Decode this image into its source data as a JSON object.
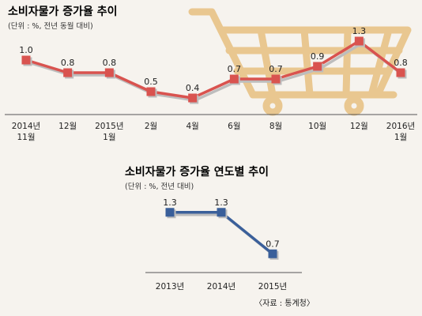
{
  "colors": {
    "background": "#f6f3ee",
    "cart": "#e9c790",
    "series_red": "#d9534f",
    "series_blue": "#3a5f9a",
    "drop_shadow": "#bdbdbd"
  },
  "icons": [
    "shopping-cart-icon"
  ],
  "source_note": "〈자료 : 통계청〉",
  "chart_data": [
    {
      "type": "line",
      "title": "소비자물가 증가율 추이",
      "subtitle": "(단위 : %, 전년 동월 대비)",
      "categories": [
        [
          "2014년",
          "11월"
        ],
        [
          "12월"
        ],
        [
          "2015년",
          "1월"
        ],
        [
          "2월"
        ],
        [
          "4월"
        ],
        [
          "6월"
        ],
        [
          "8월"
        ],
        [
          "10월"
        ],
        [
          "12월"
        ],
        [
          "2016년",
          "1월"
        ]
      ],
      "values": [
        1.0,
        0.8,
        0.8,
        0.5,
        0.4,
        0.7,
        0.7,
        0.9,
        1.3,
        0.8
      ],
      "value_labels": [
        "1.0",
        "0.8",
        "0.8",
        "0.5",
        "0.4",
        "0.7",
        "0.7",
        "0.9",
        "1.3",
        "0.8"
      ],
      "ylim": [
        0.3,
        1.35
      ],
      "grid": false
    },
    {
      "type": "line",
      "title": "소비자물가 증가율 연도별 추이",
      "subtitle": "(단위 : %, 전년 대비)",
      "categories": [
        "2013년",
        "2014년",
        "2015년"
      ],
      "values": [
        1.3,
        1.3,
        0.7
      ],
      "value_labels": [
        "1.3",
        "1.3",
        "0.7"
      ],
      "ylim": [
        0.6,
        1.4
      ],
      "grid": false
    }
  ]
}
